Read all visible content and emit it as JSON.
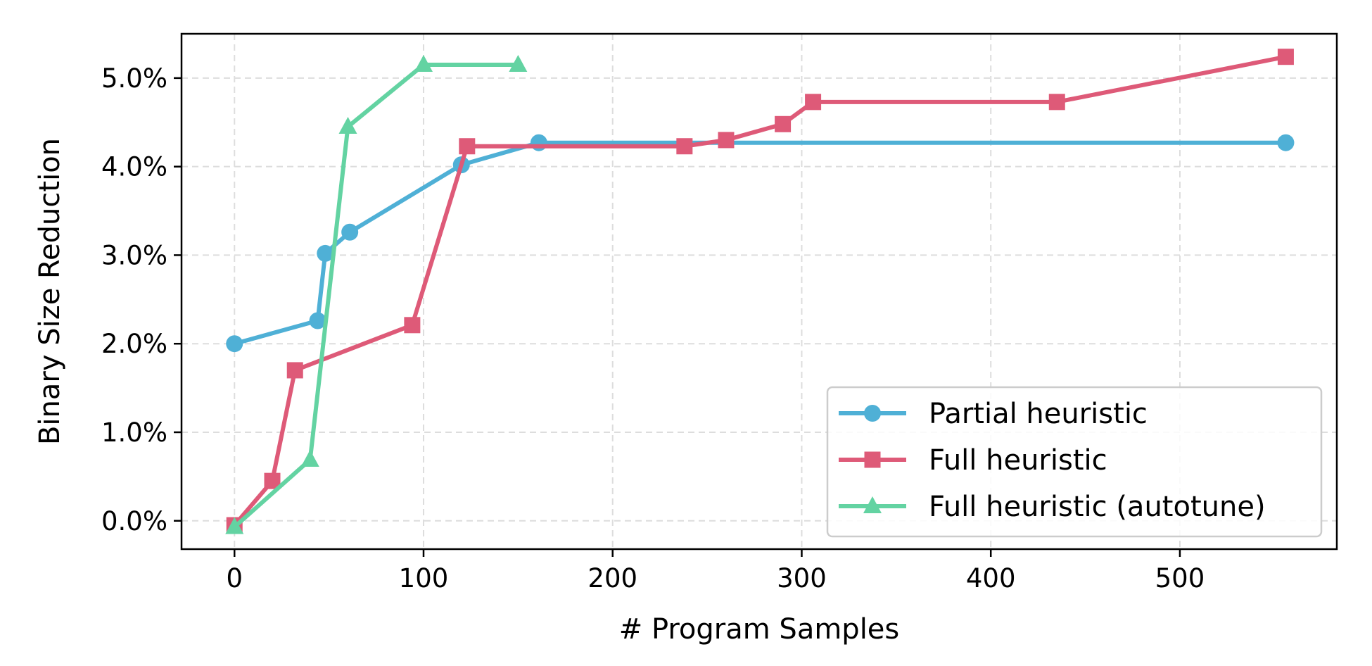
{
  "chart_data": {
    "type": "line",
    "title": "",
    "xlabel": "# Program Samples",
    "ylabel": "Binary Size Reduction",
    "xlim": [
      -28,
      583
    ],
    "ylim": [
      -0.32,
      5.5
    ],
    "x_ticks": [
      0,
      100,
      200,
      300,
      400,
      500
    ],
    "x_tick_labels": [
      "0",
      "100",
      "200",
      "300",
      "400",
      "500"
    ],
    "y_ticks": [
      0,
      1,
      2,
      3,
      4,
      5
    ],
    "y_tick_labels": [
      "0.0%",
      "1.0%",
      "2.0%",
      "3.0%",
      "4.0%",
      "5.0%"
    ],
    "grid": true,
    "legend_position": "bottom-right",
    "series": [
      {
        "name": "Partial heuristic",
        "color": "#4fb0d6",
        "marker": "circle",
        "x": [
          0,
          44,
          48,
          61,
          120,
          161,
          556
        ],
        "y": [
          2.0,
          2.26,
          3.02,
          3.26,
          4.02,
          4.27,
          4.27
        ]
      },
      {
        "name": "Full heuristic",
        "color": "#de5a78",
        "marker": "square",
        "x": [
          0,
          20,
          32,
          94,
          123,
          238,
          260,
          290,
          306,
          435,
          556
        ],
        "y": [
          -0.05,
          0.45,
          1.7,
          2.21,
          4.23,
          4.23,
          4.3,
          4.48,
          4.73,
          4.73,
          5.24
        ]
      },
      {
        "name": "Full heuristic (autotune)",
        "color": "#63d3a2",
        "marker": "triangle",
        "x": [
          0,
          40,
          60,
          100,
          150
        ],
        "y": [
          -0.07,
          0.69,
          4.45,
          5.15,
          5.15
        ]
      }
    ]
  }
}
